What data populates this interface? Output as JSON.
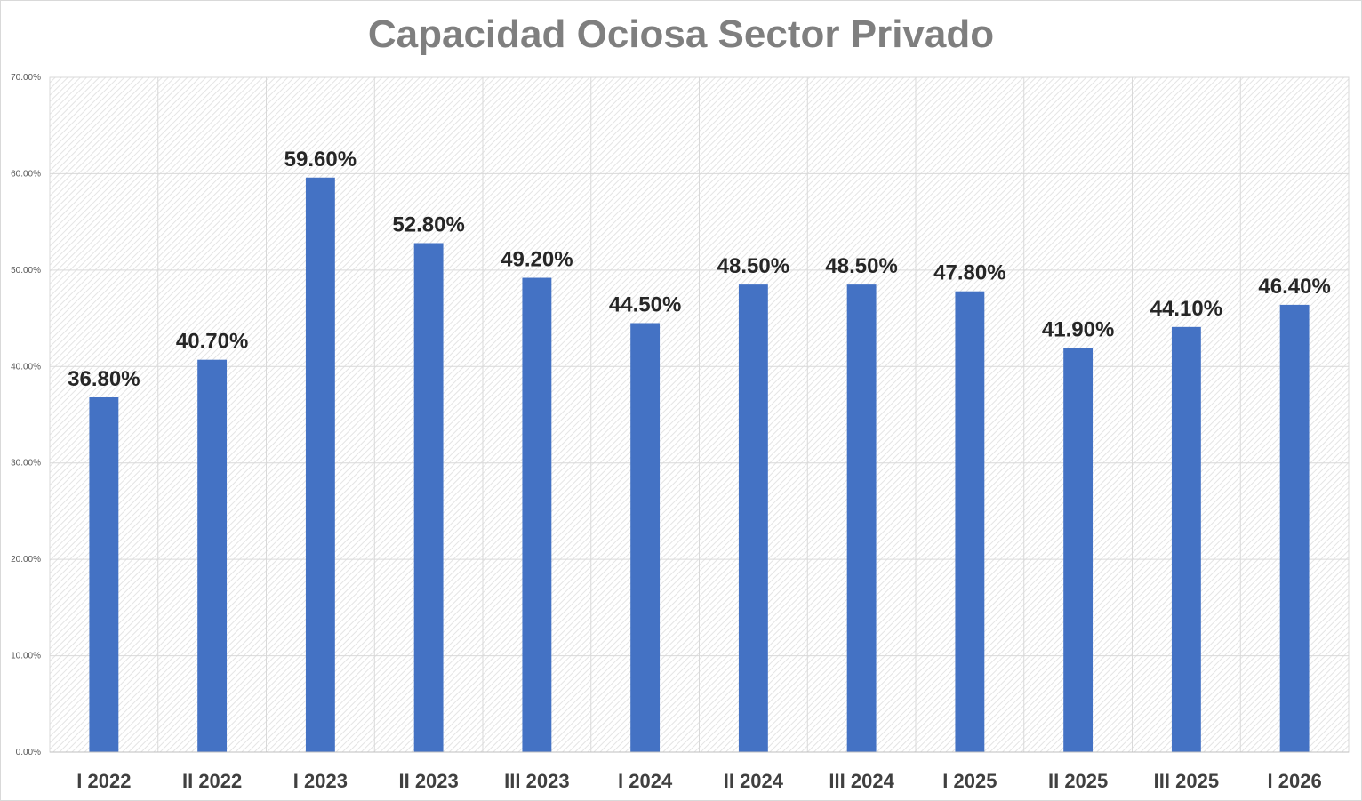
{
  "chart_data": {
    "type": "bar",
    "title": "Capacidad Ociosa Sector Privado",
    "xlabel": "",
    "ylabel": "",
    "ylim": [
      0,
      70
    ],
    "yticks": [
      "0.00%",
      "10.00%",
      "20.00%",
      "30.00%",
      "40.00%",
      "50.00%",
      "60.00%",
      "70.00%"
    ],
    "categories": [
      "I 2022",
      "II 2022",
      "I 2023",
      "II 2023",
      "III 2023",
      "I 2024",
      "II 2024",
      "III 2024",
      "I 2025",
      "II 2025",
      "III 2025",
      "I 2026"
    ],
    "values": [
      36.8,
      40.7,
      59.6,
      52.8,
      49.2,
      44.5,
      48.5,
      48.5,
      47.8,
      41.9,
      44.1,
      46.4
    ],
    "data_labels": [
      "36.80%",
      "40.70%",
      "59.60%",
      "52.80%",
      "49.20%",
      "44.50%",
      "48.50%",
      "48.50%",
      "47.80%",
      "41.90%",
      "44.10%",
      "46.40%"
    ],
    "bar_color": "#4472c4",
    "grid": true,
    "legend": "none"
  }
}
